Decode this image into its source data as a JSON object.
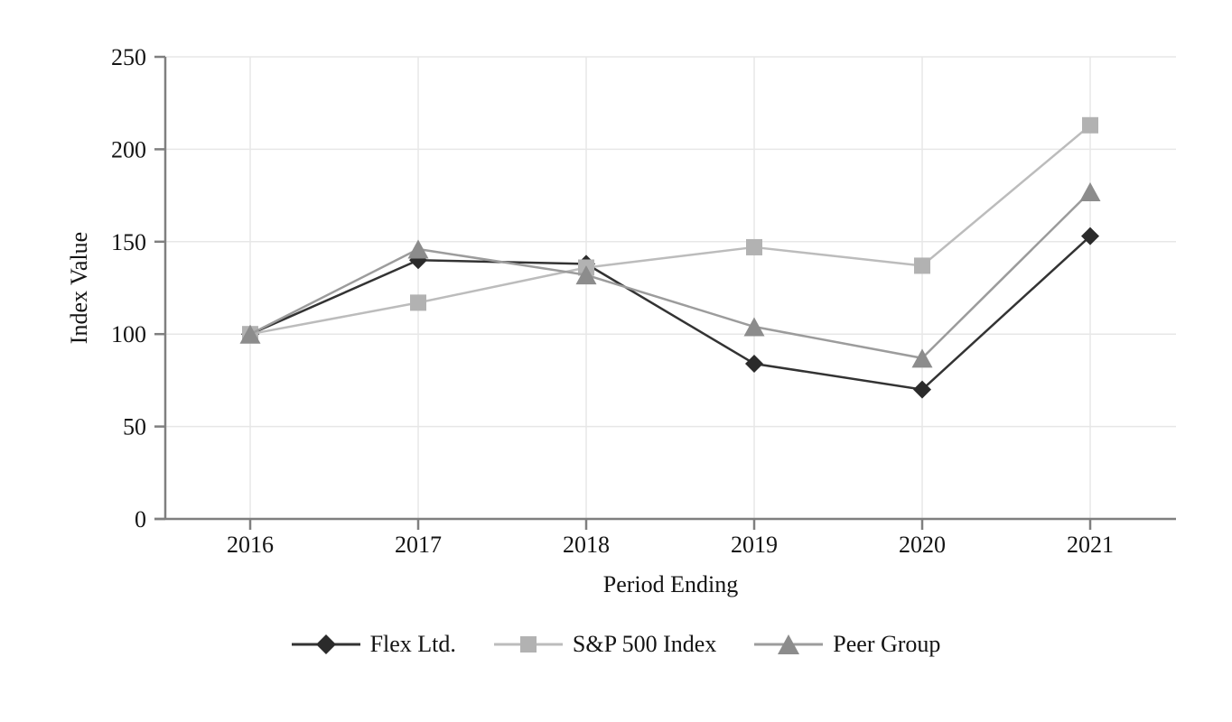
{
  "chart_data": {
    "type": "line",
    "title": "",
    "xlabel": "Period Ending",
    "ylabel": "Index Value",
    "categories": [
      "2016",
      "2017",
      "2018",
      "2019",
      "2020",
      "2021"
    ],
    "yticks": [
      0,
      50,
      100,
      150,
      200,
      250
    ],
    "ylim": [
      0,
      250
    ],
    "grid": true,
    "legend_position": "bottom",
    "axis_color": "#7f7f7f",
    "grid_color": "#e7e7e7",
    "text_color": "#141414",
    "series": [
      {
        "name": "Flex Ltd.",
        "marker": "diamond",
        "color": "#333333",
        "marker_color": "#2b2b2b",
        "values": [
          100,
          140,
          138,
          84,
          70,
          153
        ]
      },
      {
        "name": "S&P 500 Index",
        "marker": "square",
        "color": "#bcbcbc",
        "marker_color": "#b2b2b2",
        "values": [
          100,
          117,
          136,
          147,
          137,
          213
        ]
      },
      {
        "name": "Peer Group",
        "marker": "triangle",
        "color": "#9c9c9c",
        "marker_color": "#8c8c8c",
        "values": [
          100,
          146,
          132,
          104,
          87,
          177
        ]
      }
    ]
  }
}
